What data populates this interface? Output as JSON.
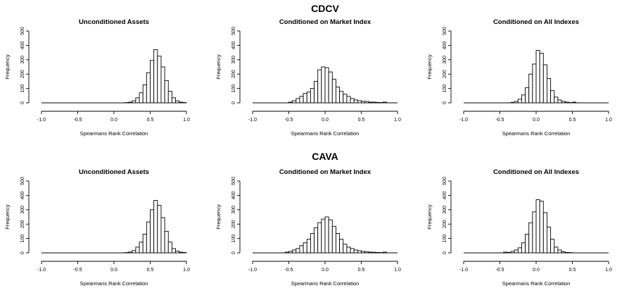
{
  "figure": {
    "group_titles": [
      "CDCV",
      "CAVA"
    ],
    "panel_titles": [
      "Unconditioned Assets",
      "Conditioned on Market Index",
      "Conditioned on All Indexes"
    ],
    "xlabel": "Spearmans Rank Correlation",
    "ylabel": "Frequency"
  },
  "chart_data": [
    {
      "type": "bar",
      "group": "CDCV",
      "title": "Unconditioned Assets",
      "xlabel": "Spearmans Rank Correlation",
      "ylabel": "Frequency",
      "xlim": [
        -1.0,
        1.0
      ],
      "ylim": [
        0,
        500
      ],
      "xticks": [
        "-1.0",
        "-0.5",
        "0.0",
        "0.5",
        "1.0"
      ],
      "yticks": [
        "0",
        "100",
        "200",
        "300",
        "400",
        "500"
      ],
      "bin_width": 0.05,
      "bin_starts": [
        0.15,
        0.2,
        0.25,
        0.3,
        0.35,
        0.4,
        0.45,
        0.5,
        0.55,
        0.6,
        0.65,
        0.7,
        0.75,
        0.8,
        0.85,
        0.9,
        0.95
      ],
      "values": [
        2,
        5,
        14,
        35,
        70,
        125,
        210,
        295,
        370,
        325,
        250,
        155,
        80,
        35,
        14,
        5,
        2
      ]
    },
    {
      "type": "bar",
      "group": "CDCV",
      "title": "Conditioned on Market Index",
      "xlabel": "Spearmans Rank Correlation",
      "ylabel": "Frequency",
      "xlim": [
        -1.0,
        1.0
      ],
      "ylim": [
        0,
        500
      ],
      "xticks": [
        "-1.0",
        "-0.5",
        "0.0",
        "0.5",
        "1.0"
      ],
      "yticks": [
        "0",
        "100",
        "200",
        "300",
        "400",
        "500"
      ],
      "bin_width": 0.05,
      "bin_starts": [
        -0.5,
        -0.45,
        -0.4,
        -0.35,
        -0.3,
        -0.25,
        -0.2,
        -0.15,
        -0.1,
        -0.05,
        0.0,
        0.05,
        0.1,
        0.15,
        0.2,
        0.25,
        0.3,
        0.35,
        0.4,
        0.45,
        0.5,
        0.55,
        0.6,
        0.65,
        0.7,
        0.75,
        0.8
      ],
      "values": [
        5,
        15,
        30,
        45,
        65,
        75,
        100,
        150,
        230,
        250,
        245,
        215,
        165,
        110,
        80,
        60,
        45,
        30,
        20,
        15,
        10,
        10,
        5,
        5,
        3,
        2,
        5
      ]
    },
    {
      "type": "bar",
      "group": "CDCV",
      "title": "Conditioned on All Indexes",
      "xlabel": "Spearmans Rank Correlation",
      "ylabel": "Frequency",
      "xlim": [
        -1.0,
        1.0
      ],
      "ylim": [
        0,
        500
      ],
      "xticks": [
        "-1.0",
        "-0.5",
        "0.0",
        "0.5",
        "1.0"
      ],
      "yticks": [
        "0",
        "100",
        "200",
        "300",
        "400",
        "500"
      ],
      "bin_width": 0.05,
      "bin_starts": [
        -0.35,
        -0.3,
        -0.25,
        -0.2,
        -0.15,
        -0.1,
        -0.05,
        0.0,
        0.05,
        0.1,
        0.15,
        0.2,
        0.25,
        0.3,
        0.35,
        0.4,
        0.45,
        0.5
      ],
      "values": [
        3,
        10,
        25,
        55,
        105,
        200,
        270,
        365,
        345,
        265,
        170,
        85,
        40,
        20,
        10,
        5,
        2,
        5
      ]
    },
    {
      "type": "bar",
      "group": "CAVA",
      "title": "Unconditioned Assets",
      "xlabel": "Spearmans Rank Correlation",
      "ylabel": "Frequency",
      "xlim": [
        -1.0,
        1.0
      ],
      "ylim": [
        0,
        500
      ],
      "xticks": [
        "-1.0",
        "-0.5",
        "0.0",
        "0.5",
        "1.0"
      ],
      "yticks": [
        "0",
        "100",
        "200",
        "300",
        "400",
        "500"
      ],
      "bin_width": 0.05,
      "bin_starts": [
        0.15,
        0.2,
        0.25,
        0.3,
        0.35,
        0.4,
        0.45,
        0.5,
        0.55,
        0.6,
        0.65,
        0.7,
        0.75,
        0.8,
        0.85,
        0.9,
        0.95
      ],
      "values": [
        2,
        6,
        16,
        40,
        75,
        130,
        215,
        300,
        365,
        330,
        245,
        150,
        75,
        30,
        12,
        5,
        2
      ]
    },
    {
      "type": "bar",
      "group": "CAVA",
      "title": "Conditioned on Market Index",
      "xlabel": "Spearmans Rank Correlation",
      "ylabel": "Frequency",
      "xlim": [
        -1.0,
        1.0
      ],
      "ylim": [
        0,
        500
      ],
      "xticks": [
        "-1.0",
        "-0.5",
        "0.0",
        "0.5",
        "1.0"
      ],
      "yticks": [
        "0",
        "100",
        "200",
        "300",
        "400",
        "500"
      ],
      "bin_width": 0.05,
      "bin_starts": [
        -0.55,
        -0.5,
        -0.45,
        -0.4,
        -0.35,
        -0.3,
        -0.25,
        -0.2,
        -0.15,
        -0.1,
        -0.05,
        0.0,
        0.05,
        0.1,
        0.15,
        0.2,
        0.25,
        0.3,
        0.35,
        0.4,
        0.45,
        0.5,
        0.55,
        0.6,
        0.65,
        0.7,
        0.75,
        0.8
      ],
      "values": [
        5,
        10,
        20,
        30,
        50,
        70,
        95,
        135,
        175,
        210,
        235,
        250,
        230,
        185,
        135,
        95,
        60,
        40,
        30,
        20,
        15,
        10,
        8,
        5,
        4,
        3,
        2,
        5
      ]
    },
    {
      "type": "bar",
      "group": "CAVA",
      "title": "Conditioned on All Indexes",
      "xlabel": "Spearmans Rank Correlation",
      "ylabel": "Frequency",
      "xlim": [
        -1.0,
        1.0
      ],
      "ylim": [
        0,
        500
      ],
      "xticks": [
        "-1.0",
        "-0.5",
        "0.0",
        "0.5",
        "1.0"
      ],
      "yticks": [
        "0",
        "100",
        "200",
        "300",
        "400",
        "500"
      ],
      "bin_width": 0.05,
      "bin_starts": [
        -0.45,
        -0.4,
        -0.35,
        -0.3,
        -0.25,
        -0.2,
        -0.15,
        -0.1,
        -0.05,
        0.0,
        0.05,
        0.1,
        0.15,
        0.2,
        0.25,
        0.3,
        0.35,
        0.4,
        0.45
      ],
      "values": [
        5,
        3,
        10,
        20,
        35,
        70,
        130,
        210,
        285,
        370,
        360,
        280,
        180,
        95,
        40,
        20,
        8,
        3,
        2
      ]
    }
  ]
}
